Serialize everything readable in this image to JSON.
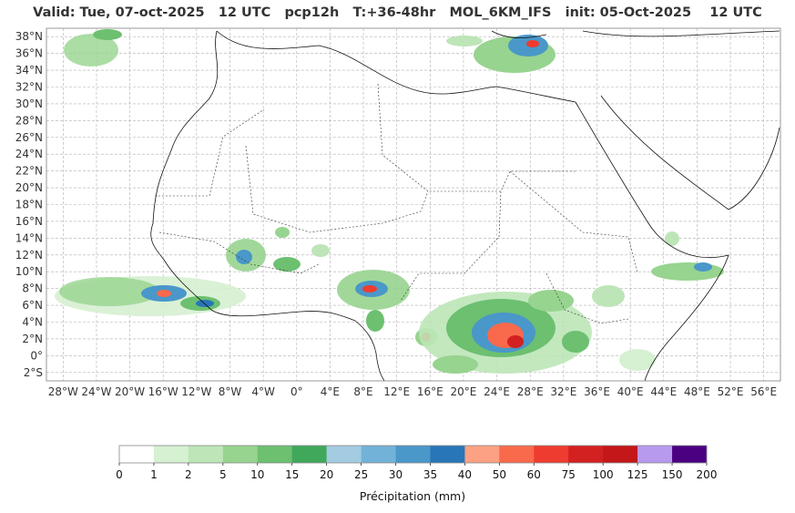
{
  "title": "Valid: Tue, 07-oct-2025   12 UTC   pcp12h   T:+36-48hr   MOL_6KM_IFS   init: 05-Oct-2025    12 UTC",
  "map": {
    "lon_range": [
      -30,
      58
    ],
    "lat_range": [
      -3,
      39
    ],
    "lat_ticks": [
      "38°N",
      "36°N",
      "34°N",
      "32°N",
      "30°N",
      "28°N",
      "26°N",
      "24°N",
      "22°N",
      "20°N",
      "18°N",
      "16°N",
      "14°N",
      "12°N",
      "10°N",
      "8°N",
      "6°N",
      "4°N",
      "2°N",
      "0°",
      "2°S"
    ],
    "lon_ticks": [
      "28°W",
      "24°W",
      "20°W",
      "16°W",
      "12°W",
      "8°W",
      "4°W",
      "0°",
      "4°E",
      "8°E",
      "12°E",
      "16°E",
      "20°E",
      "24°E",
      "28°E",
      "32°E",
      "36°E",
      "40°E",
      "44°E",
      "48°E",
      "52°E",
      "56°E"
    ],
    "gridlines": "on"
  },
  "colorbar": {
    "label": "Précipitation (mm)",
    "ticks": [
      "0",
      "1",
      "2",
      "5",
      "10",
      "15",
      "20",
      "25",
      "30",
      "35",
      "40",
      "50",
      "60",
      "75",
      "100",
      "125",
      "150",
      "200"
    ],
    "colors": [
      "#ffffff",
      "#d6f0d2",
      "#bde5b7",
      "#97d48f",
      "#6cc070",
      "#3fa85b",
      "#a3cbe2",
      "#73b2d8",
      "#4a97c9",
      "#2876b8",
      "#fca183",
      "#f9694c",
      "#ef3c30",
      "#d32020",
      "#c41719",
      "#b79aee",
      "#4b0082"
    ]
  },
  "colors": {
    "coast": "#111111",
    "border": "#222222",
    "grid": "#b0b0b0",
    "frame": "#999999"
  }
}
